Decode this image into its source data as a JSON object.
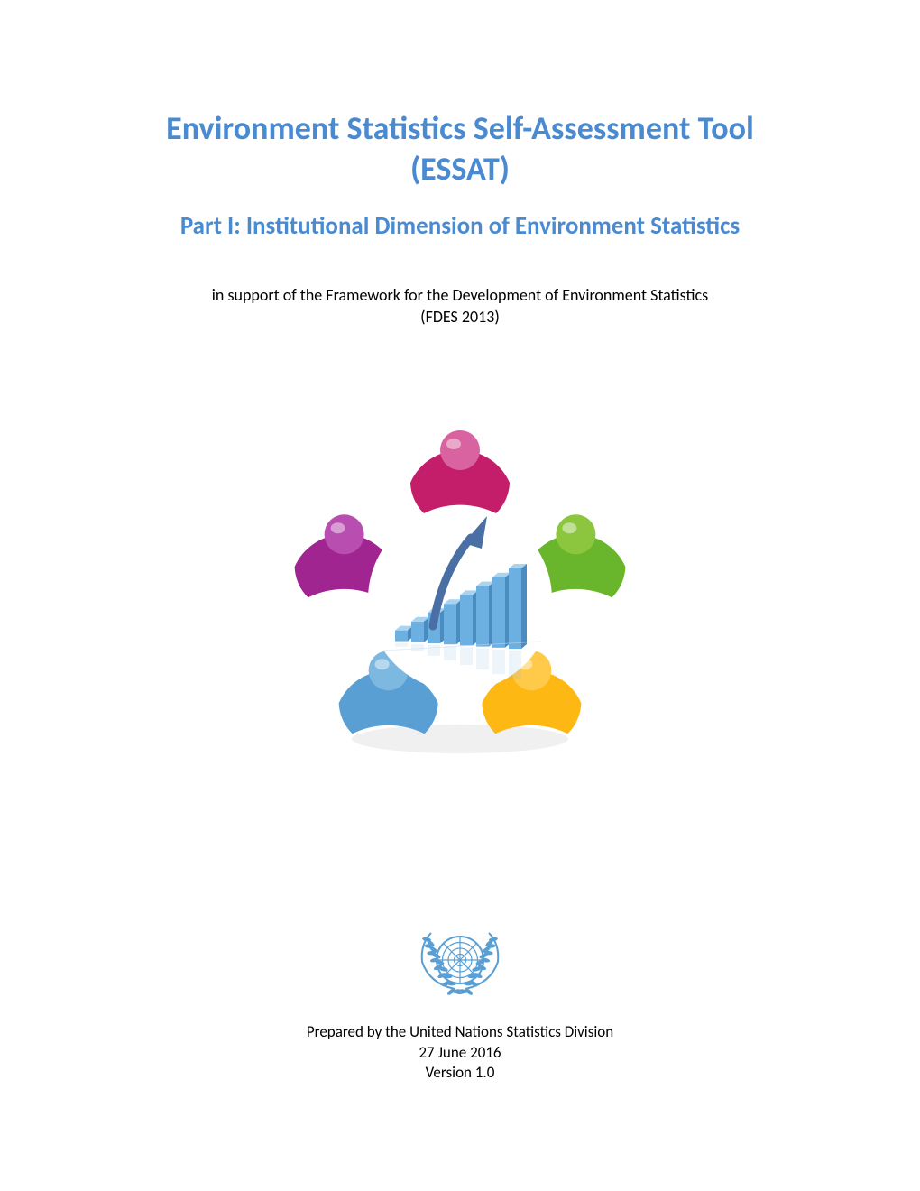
{
  "title_color": "#4a8ad0",
  "title_line1": "Environment Statistics Self-Assessment Tool",
  "title_line2": "(ESSAT)",
  "subtitle": "Part I: Institutional Dimension of Environment Statistics",
  "support_line1": "in support of the Framework for the Development of Environment Statistics",
  "support_line2": "(FDES 2013)",
  "hero": {
    "figure_colors": [
      "#c41e6a",
      "#69b52c",
      "#fdb813",
      "#5a9fd4",
      "#a02590"
    ],
    "figure_head_colors": [
      "#d963a0",
      "#8cc63f",
      "#ffc94a",
      "#7db8e0",
      "#b84fb0"
    ],
    "bar_count": 8,
    "bar_color": "#6bb0e0",
    "bar_top": "#a8d4f0",
    "bar_side": "#4a8cc0",
    "arrow_color": "#4a6fa5",
    "center_bg": "#ffffff"
  },
  "un_logo_color": "#5a9fd4",
  "footer": {
    "prepared": "Prepared by the United Nations Statistics Division",
    "date": "27 June 2016",
    "version": "Version 1.0"
  }
}
